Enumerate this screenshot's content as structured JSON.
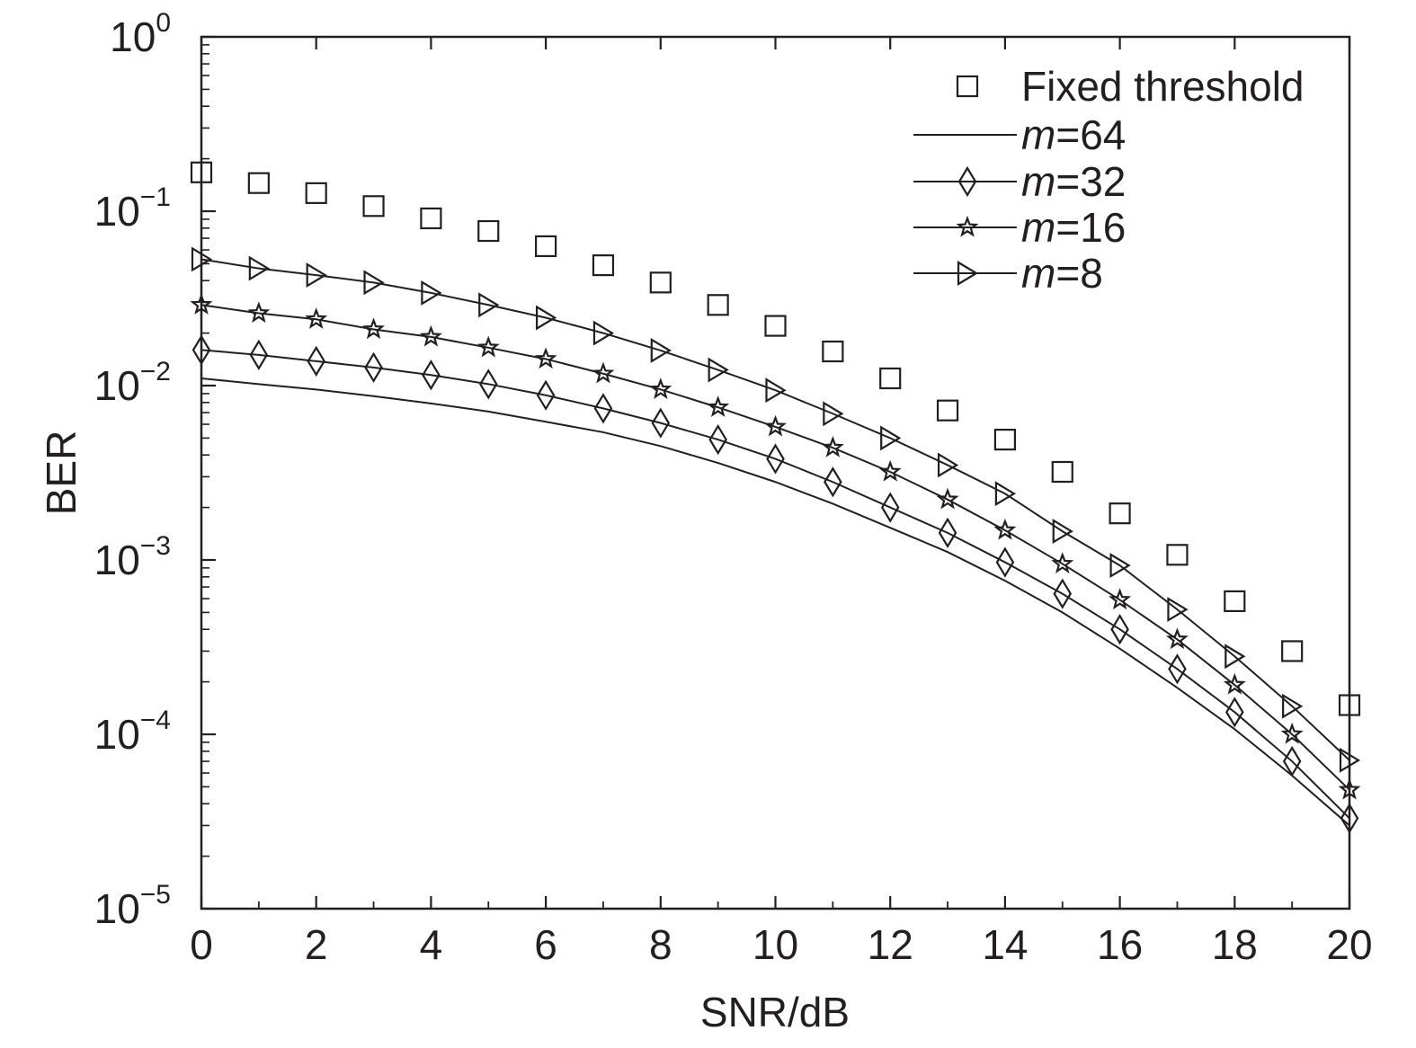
{
  "chart_data": {
    "type": "line",
    "title": "",
    "xlabel": "SNR/dB",
    "ylabel": "BER",
    "xlim": [
      0,
      20
    ],
    "ylim": [
      1e-05,
      1
    ],
    "yscale": "log",
    "grid": false,
    "legend_position": "top-right",
    "x_ticks": [
      0,
      2,
      4,
      6,
      8,
      10,
      12,
      14,
      16,
      18,
      20
    ],
    "x_tick_labels": [
      "0",
      "2",
      "4",
      "6",
      "8",
      "10",
      "12",
      "14",
      "16",
      "18",
      "20"
    ],
    "y_ticks": [
      {
        "value": 1.0,
        "base": "10",
        "exp": "0"
      },
      {
        "value": 0.1,
        "base": "10",
        "exp": "−1"
      },
      {
        "value": 0.01,
        "base": "10",
        "exp": "−2"
      },
      {
        "value": 0.001,
        "base": "10",
        "exp": "−3"
      },
      {
        "value": 0.0001,
        "base": "10",
        "exp": "−4"
      },
      {
        "value": 1e-05,
        "base": "10",
        "exp": "−5"
      }
    ],
    "x": [
      0,
      1,
      2,
      3,
      4,
      5,
      6,
      7,
      8,
      9,
      10,
      11,
      12,
      13,
      14,
      15,
      16,
      17,
      18,
      19,
      20
    ],
    "series": [
      {
        "name": "Fixed threshold",
        "marker": "square",
        "line": false,
        "values": [
          0.167,
          0.145,
          0.127,
          0.107,
          0.091,
          0.077,
          0.063,
          0.049,
          0.039,
          0.029,
          0.022,
          0.0157,
          0.011,
          0.0072,
          0.0049,
          0.0032,
          0.00185,
          0.00107,
          0.00058,
          0.0003,
          0.000147
        ]
      },
      {
        "name_prefix": "m",
        "name_suffix": "=64",
        "marker": "none",
        "line": true,
        "values": [
          0.011,
          0.0102,
          0.0095,
          0.0087,
          0.0079,
          0.0071,
          0.0062,
          0.0054,
          0.0045,
          0.0036,
          0.0028,
          0.0021,
          0.00153,
          0.00111,
          0.00076,
          0.0005,
          0.00031,
          0.000185,
          0.000107,
          5.8e-05,
          3e-05
        ]
      },
      {
        "name_prefix": "m",
        "name_suffix": "=32",
        "marker": "diamond",
        "line": true,
        "values": [
          0.016,
          0.015,
          0.0138,
          0.0127,
          0.0115,
          0.0102,
          0.0088,
          0.0074,
          0.0061,
          0.0049,
          0.0038,
          0.0028,
          0.002,
          0.00143,
          0.00097,
          0.00064,
          0.0004,
          0.000237,
          0.000134,
          7e-05,
          3.3e-05
        ]
      },
      {
        "name_prefix": "m",
        "name_suffix": "=16",
        "marker": "star",
        "line": true,
        "values": [
          0.029,
          0.026,
          0.024,
          0.021,
          0.019,
          0.0165,
          0.0142,
          0.0117,
          0.0095,
          0.0075,
          0.0058,
          0.0044,
          0.0032,
          0.00222,
          0.00148,
          0.00095,
          0.00059,
          0.00035,
          0.000192,
          0.0001,
          4.8e-05
        ]
      },
      {
        "name_prefix": "m",
        "name_suffix": "=8",
        "marker": "triangle-right",
        "line": true,
        "values": [
          0.053,
          0.047,
          0.043,
          0.039,
          0.034,
          0.029,
          0.0245,
          0.02,
          0.0159,
          0.0123,
          0.0094,
          0.0069,
          0.005,
          0.0035,
          0.0024,
          0.00146,
          0.00093,
          0.00052,
          0.00028,
          0.000145,
          7.1e-05
        ]
      }
    ]
  }
}
